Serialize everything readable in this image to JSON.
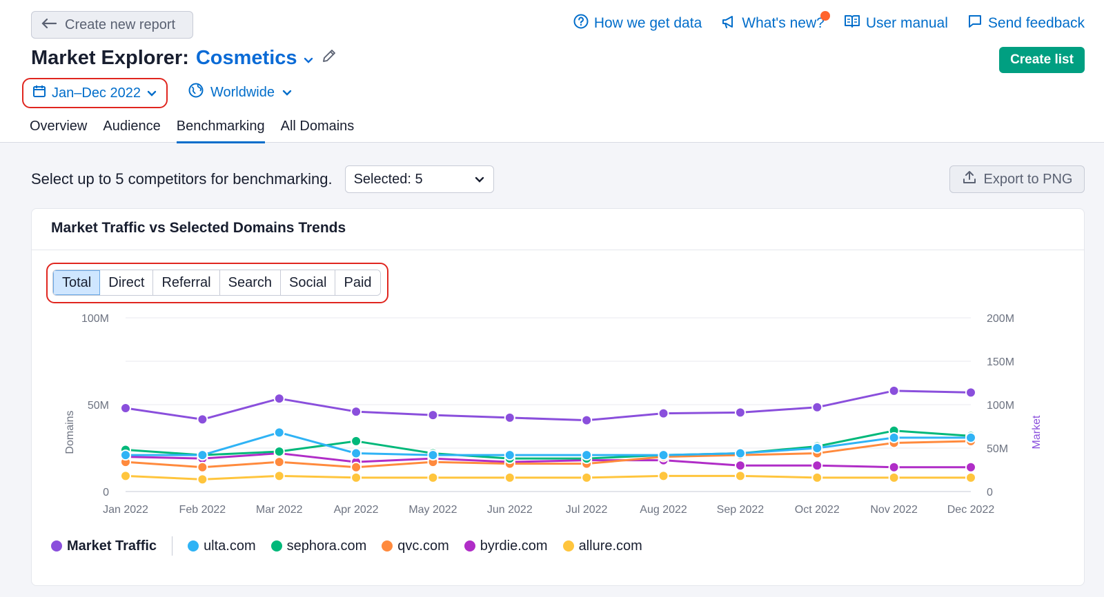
{
  "header": {
    "back_label": "Create new report",
    "links": [
      {
        "icon": "question-circle-icon",
        "label": "How we get data"
      },
      {
        "icon": "megaphone-icon",
        "label": "What's new?"
      },
      {
        "icon": "book-icon",
        "label": "User manual"
      },
      {
        "icon": "feedback-icon",
        "label": "Send feedback"
      }
    ],
    "title_prefix": "Market Explorer:",
    "title_market": "Cosmetics",
    "create_list_label": "Create list",
    "date_range": "Jan–Dec 2022",
    "region": "Worldwide",
    "tabs": [
      "Overview",
      "Audience",
      "Benchmarking",
      "All Domains"
    ],
    "active_tab": "Benchmarking"
  },
  "toolbar": {
    "select_prompt": "Select up to 5 competitors for benchmarking.",
    "selected_value": "Selected: 5",
    "export_label": "Export to PNG"
  },
  "card": {
    "title": "Market Traffic vs Selected Domains Trends",
    "segments": [
      "Total",
      "Direct",
      "Referral",
      "Search",
      "Social",
      "Paid"
    ],
    "active_segment": "Total"
  },
  "chart_data": {
    "type": "line",
    "x": [
      "Jan 2022",
      "Feb 2022",
      "Mar 2022",
      "Apr 2022",
      "May 2022",
      "Jun 2022",
      "Jul 2022",
      "Aug 2022",
      "Sep 2022",
      "Oct 2022",
      "Nov 2022",
      "Dec 2022"
    ],
    "y_left_label": "Domains",
    "y_left_ticks": [
      "0",
      "50M",
      "100M"
    ],
    "y_left_range": [
      0,
      100000000
    ],
    "y_right_label": "Market",
    "y_right_ticks": [
      "0",
      "50M",
      "100M",
      "150M",
      "200M"
    ],
    "y_right_range": [
      0,
      200000000
    ],
    "grid": true,
    "legend_position": "bottom-left",
    "series": [
      {
        "name": "Market Traffic",
        "axis": "right",
        "color": "#8a4fdc",
        "values": [
          96000000,
          83000000,
          107000000,
          92000000,
          88000000,
          85000000,
          82000000,
          90000000,
          91000000,
          97000000,
          116000000,
          114000000
        ]
      },
      {
        "name": "ulta.com",
        "axis": "left",
        "color": "#2fb3f5",
        "values": [
          21000000,
          21000000,
          34000000,
          22000000,
          21000000,
          21000000,
          21000000,
          21000000,
          22000000,
          25000000,
          31000000,
          31000000
        ]
      },
      {
        "name": "sephora.com",
        "axis": "left",
        "color": "#00b87a",
        "values": [
          24000000,
          21000000,
          23000000,
          29000000,
          22000000,
          19000000,
          19000000,
          21000000,
          22000000,
          26000000,
          35000000,
          32000000
        ]
      },
      {
        "name": "qvc.com",
        "axis": "left",
        "color": "#ff8a3d",
        "values": [
          17000000,
          14000000,
          17000000,
          14000000,
          17000000,
          16000000,
          16000000,
          20000000,
          21000000,
          22000000,
          28000000,
          29000000
        ]
      },
      {
        "name": "byrdie.com",
        "axis": "left",
        "color": "#b02dc7",
        "values": [
          20000000,
          19000000,
          22000000,
          17000000,
          19000000,
          17000000,
          18000000,
          18000000,
          15000000,
          15000000,
          14000000,
          14000000
        ]
      },
      {
        "name": "allure.com",
        "axis": "left",
        "color": "#ffc53d",
        "values": [
          9000000,
          7000000,
          9000000,
          8000000,
          8000000,
          8000000,
          8000000,
          9000000,
          9000000,
          8000000,
          8000000,
          8000000
        ]
      }
    ]
  }
}
